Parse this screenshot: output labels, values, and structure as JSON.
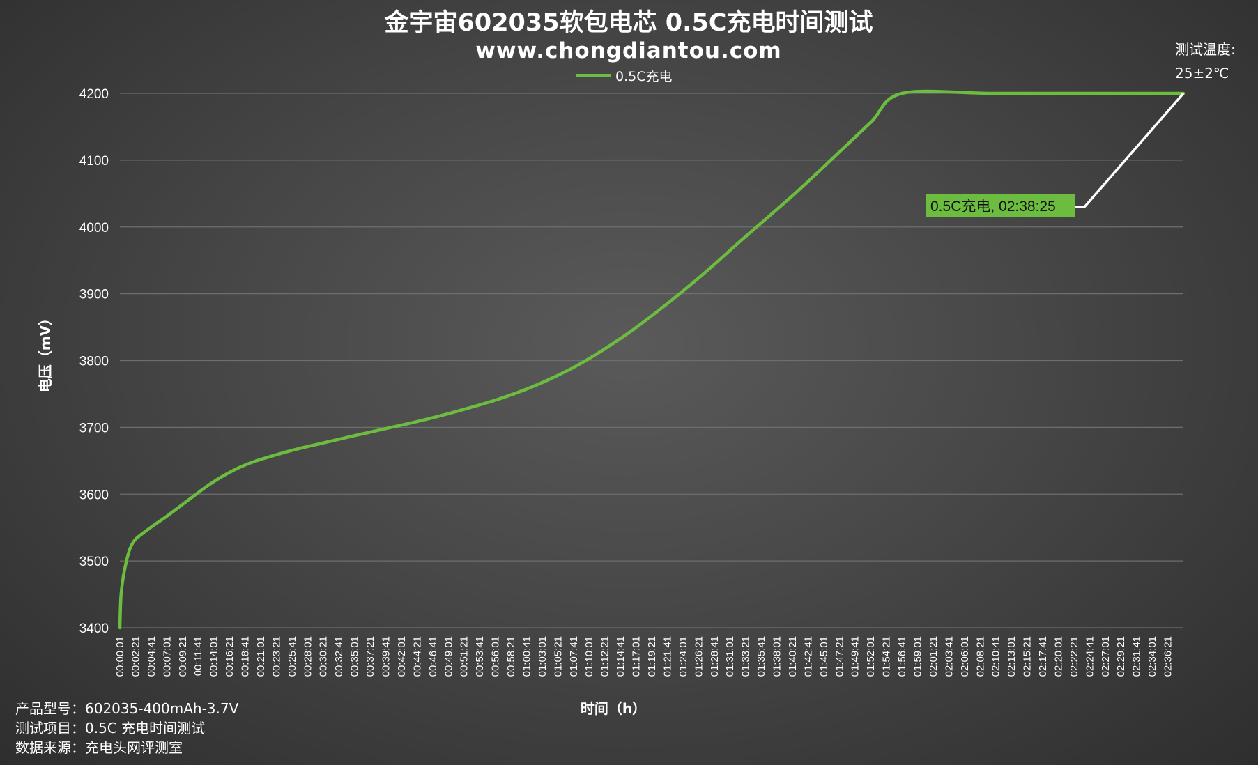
{
  "colors": {
    "series": "#6cbd3f",
    "grid": "#6e6e6e",
    "text": "#ffffff",
    "callout_line": "#ffffff",
    "callout_bg": "#6cbd3f"
  },
  "chart_data": {
    "type": "line",
    "title": "金宇宙602035软包电芯 0.5C充电时间测试",
    "subtitle": "www.chongdiantou.com",
    "xlabel": "时间（h）",
    "ylabel": "电压（mV）",
    "ylim": [
      3400,
      4200
    ],
    "yticks": [
      3400,
      3500,
      3600,
      3700,
      3800,
      3900,
      4000,
      4100,
      4200
    ],
    "grid": true,
    "legend": {
      "position": "top-center"
    },
    "x_ticks": [
      "00:00:01",
      "00:02:21",
      "00:04:41",
      "00:07:01",
      "00:09:21",
      "00:11:41",
      "00:14:01",
      "00:16:21",
      "00:18:41",
      "00:21:01",
      "00:23:21",
      "00:25:41",
      "00:28:01",
      "00:30:21",
      "00:32:41",
      "00:35:01",
      "00:37:21",
      "00:39:41",
      "00:42:01",
      "00:44:21",
      "00:46:41",
      "00:49:01",
      "00:51:21",
      "00:53:41",
      "00:56:01",
      "00:58:21",
      "01:00:41",
      "01:03:01",
      "01:05:21",
      "01:07:41",
      "01:10:01",
      "01:12:21",
      "01:14:41",
      "01:17:01",
      "01:19:21",
      "01:21:41",
      "01:24:01",
      "01:26:21",
      "01:28:41",
      "01:31:01",
      "01:33:21",
      "01:35:41",
      "01:38:01",
      "01:40:21",
      "01:42:41",
      "01:45:01",
      "01:47:21",
      "01:49:41",
      "01:52:01",
      "01:54:21",
      "01:56:41",
      "01:59:01",
      "02:01:21",
      "02:03:41",
      "02:06:01",
      "02:08:21",
      "02:10:41",
      "02:13:01",
      "02:15:21",
      "02:17:41",
      "02:20:01",
      "02:22:21",
      "02:24:41",
      "02:27:01",
      "02:29:21",
      "02:31:41",
      "02:34:01",
      "02:36:21"
    ],
    "x_end": "02:38:25",
    "series": [
      {
        "name": "0.5C充电",
        "points": [
          [
            "00:00:01",
            3400
          ],
          [
            "00:00:10",
            3445
          ],
          [
            "00:00:30",
            3475
          ],
          [
            "00:01:00",
            3500
          ],
          [
            "00:01:30",
            3518
          ],
          [
            "00:02:00",
            3528
          ],
          [
            "00:02:30",
            3534
          ],
          [
            "00:03:30",
            3542
          ],
          [
            "00:05:00",
            3553
          ],
          [
            "00:07:00",
            3567
          ],
          [
            "00:09:00",
            3582
          ],
          [
            "00:11:00",
            3597
          ],
          [
            "00:13:00",
            3612
          ],
          [
            "00:15:00",
            3625
          ],
          [
            "00:17:00",
            3636
          ],
          [
            "00:19:00",
            3645
          ],
          [
            "00:21:00",
            3652
          ],
          [
            "00:24:00",
            3661
          ],
          [
            "00:27:00",
            3669
          ],
          [
            "00:30:00",
            3676
          ],
          [
            "00:33:00",
            3683
          ],
          [
            "00:36:00",
            3690
          ],
          [
            "00:40:00",
            3699
          ],
          [
            "00:44:00",
            3708
          ],
          [
            "00:48:00",
            3718
          ],
          [
            "00:52:00",
            3729
          ],
          [
            "00:56:00",
            3741
          ],
          [
            "01:00:00",
            3755
          ],
          [
            "01:04:00",
            3772
          ],
          [
            "01:08:00",
            3792
          ],
          [
            "01:12:00",
            3816
          ],
          [
            "01:16:00",
            3843
          ],
          [
            "01:20:00",
            3873
          ],
          [
            "01:24:00",
            3905
          ],
          [
            "01:28:00",
            3939
          ],
          [
            "01:32:00",
            3975
          ],
          [
            "01:36:00",
            4010
          ],
          [
            "01:40:00",
            4045
          ],
          [
            "01:44:00",
            4082
          ],
          [
            "01:48:00",
            4120
          ],
          [
            "01:52:00",
            4158
          ],
          [
            "01:56:30",
            4200
          ],
          [
            "02:10:00",
            4200
          ],
          [
            "02:25:00",
            4200
          ],
          [
            "02:38:25",
            4200
          ]
        ]
      }
    ],
    "annotations": [
      {
        "text": "0.5C充电, 02:38:25",
        "x": "02:38:25",
        "y": 4200
      }
    ]
  },
  "notes": {
    "temperature_line1": "测试温度:",
    "temperature_line2": "25±2℃",
    "product": "产品型号：602035-400mAh-3.7V",
    "test_item": "测试项目：0.5C 充电时间测试",
    "source": "数据来源：充电头网评测室"
  }
}
